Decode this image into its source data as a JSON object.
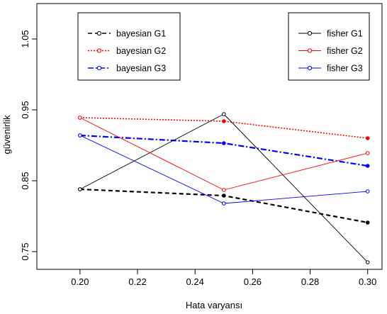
{
  "chart_data": {
    "type": "line",
    "xlabel": "Hata varyansı",
    "ylabel": "güvenirlik",
    "xlim": [
      0.185,
      0.305
    ],
    "ylim": [
      0.725,
      1.1
    ],
    "x_ticks": [
      "0.20",
      "0.22",
      "0.24",
      "0.26",
      "0.28",
      "0.30"
    ],
    "y_ticks": [
      "0.75",
      "0.85",
      "0.95",
      "1.05"
    ],
    "x": [
      0.2,
      0.25,
      0.3
    ],
    "legend_left": {
      "placement": "top-left",
      "entries": [
        "bayesian G1",
        "bayesian G2",
        "bayesian G3"
      ]
    },
    "legend_right": {
      "placement": "top-right",
      "entries": [
        "fisher G1",
        "fisher G2",
        "fisher G3"
      ]
    },
    "series": [
      {
        "name": "bayesian G1",
        "color": "#000000",
        "dash": "6,4",
        "width": 2.2,
        "marker": "filled",
        "values": [
          0.838,
          0.829,
          0.791
        ]
      },
      {
        "name": "bayesian G2",
        "color": "#ff0000",
        "dash": "2,2",
        "width": 1.6,
        "marker": "filled",
        "values": [
          0.939,
          0.934,
          0.91
        ]
      },
      {
        "name": "bayesian G3",
        "color": "#0000ff",
        "dash": "8,3,2,3",
        "width": 2.2,
        "marker": "filled",
        "values": [
          0.914,
          0.903,
          0.871
        ]
      },
      {
        "name": "fisher G1",
        "color": "#000000",
        "dash": "",
        "width": 0.9,
        "marker": "open",
        "values": [
          0.838,
          0.944,
          0.735
        ]
      },
      {
        "name": "fisher G2",
        "color": "#ff0000",
        "dash": "",
        "width": 0.9,
        "marker": "open",
        "values": [
          0.939,
          0.837,
          0.889
        ]
      },
      {
        "name": "fisher G3",
        "color": "#0000ff",
        "dash": "",
        "width": 0.9,
        "marker": "open",
        "values": [
          0.914,
          0.818,
          0.835
        ]
      }
    ]
  }
}
